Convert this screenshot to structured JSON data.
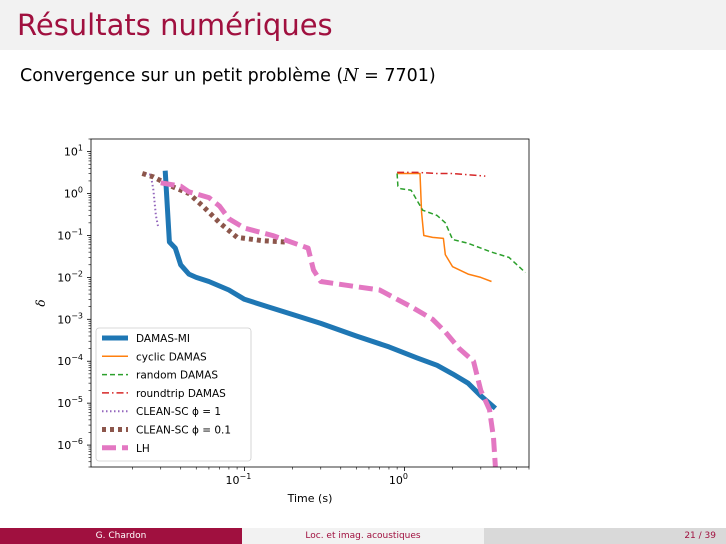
{
  "slide": {
    "title": "Résultats numériques",
    "subtitle_prefix": "Convergence sur un petit problème (",
    "subtitle_var": "N",
    "subtitle_eq": " = ",
    "subtitle_val": "7701",
    "subtitle_suffix": ")"
  },
  "footer": {
    "author": "G. Chardon",
    "short_title": "Loc. et imag. acoustiques",
    "page": "21 / 39"
  },
  "chart_data": {
    "type": "line",
    "xlabel": "Time (s)",
    "ylabel": "δ",
    "x_scale": "log",
    "y_scale": "log",
    "xlim": [
      0.011,
      6.0
    ],
    "ylim": [
      3e-07,
      20
    ],
    "x_ticks": [
      {
        "value": 0.1,
        "base": "10",
        "exp": "−1"
      },
      {
        "value": 1,
        "base": "10",
        "exp": "0"
      }
    ],
    "y_ticks": [
      {
        "value": 10,
        "base": "10",
        "exp": "1"
      },
      {
        "value": 1,
        "base": "10",
        "exp": "0"
      },
      {
        "value": 0.1,
        "base": "10",
        "exp": "−1"
      },
      {
        "value": 0.01,
        "base": "10",
        "exp": "−2"
      },
      {
        "value": 0.001,
        "base": "10",
        "exp": "−3"
      },
      {
        "value": 0.0001,
        "base": "10",
        "exp": "−4"
      },
      {
        "value": 1e-05,
        "base": "10",
        "exp": "−5"
      },
      {
        "value": 1e-06,
        "base": "10",
        "exp": "−6"
      }
    ],
    "grid": false,
    "legend_position": "lower-left",
    "series": [
      {
        "name": "DAMAS-MI",
        "color": "#1f77b4",
        "dash": "",
        "width": 5,
        "points": [
          [
            0.032,
            3.5
          ],
          [
            0.034,
            0.07
          ],
          [
            0.037,
            0.05
          ],
          [
            0.04,
            0.02
          ],
          [
            0.045,
            0.012
          ],
          [
            0.05,
            0.01
          ],
          [
            0.06,
            0.008
          ],
          [
            0.08,
            0.005
          ],
          [
            0.1,
            0.003
          ],
          [
            0.14,
            0.002
          ],
          [
            0.2,
            0.0013
          ],
          [
            0.3,
            0.0008
          ],
          [
            0.5,
            0.0004
          ],
          [
            0.8,
            0.00022
          ],
          [
            1.2,
            0.00012
          ],
          [
            1.6,
            8e-05
          ],
          [
            2.0,
            5e-05
          ],
          [
            2.5,
            3e-05
          ],
          [
            3.0,
            1.5e-05
          ],
          [
            3.7,
            7.5e-06
          ]
        ]
      },
      {
        "name": "cyclic DAMAS",
        "color": "#ff7f0e",
        "dash": "",
        "width": 1.5,
        "points": [
          [
            0.9,
            3.0
          ],
          [
            1.25,
            3.0
          ],
          [
            1.28,
            0.35
          ],
          [
            1.32,
            0.1
          ],
          [
            1.5,
            0.09
          ],
          [
            1.75,
            0.085
          ],
          [
            1.8,
            0.035
          ],
          [
            2.0,
            0.018
          ],
          [
            2.5,
            0.012
          ],
          [
            3.0,
            0.01
          ],
          [
            3.5,
            0.008
          ]
        ]
      },
      {
        "name": "random DAMAS",
        "color": "#2ca02c",
        "dash": "5,3",
        "width": 1.5,
        "points": [
          [
            0.9,
            3.0
          ],
          [
            0.91,
            1.5
          ],
          [
            0.95,
            1.3
          ],
          [
            1.1,
            1.2
          ],
          [
            1.3,
            0.4
          ],
          [
            1.6,
            0.3
          ],
          [
            1.8,
            0.2
          ],
          [
            2.0,
            0.08
          ],
          [
            2.5,
            0.065
          ],
          [
            3.0,
            0.05
          ],
          [
            3.5,
            0.04
          ],
          [
            4.5,
            0.03
          ],
          [
            5.7,
            0.013
          ]
        ]
      },
      {
        "name": "roundtrip DAMAS",
        "color": "#d62728",
        "dash": "7,3,1.5,3",
        "width": 1.5,
        "points": [
          [
            0.9,
            3.2
          ],
          [
            1.2,
            3.2
          ],
          [
            1.6,
            3.0
          ],
          [
            2.0,
            3.0
          ],
          [
            2.5,
            2.8
          ],
          [
            3.2,
            2.6
          ]
        ]
      },
      {
        "name": "CLEAN-SC ϕ = 1",
        "color": "#9467bd",
        "dash": "1.5,2.5",
        "width": 2,
        "points": [
          [
            0.024,
            3.0
          ],
          [
            0.026,
            2.8
          ],
          [
            0.027,
            1.2
          ],
          [
            0.028,
            0.3
          ],
          [
            0.029,
            0.15
          ]
        ]
      },
      {
        "name": "CLEAN-SC ϕ = 0.1",
        "color": "#8c564b",
        "dash": "4,4",
        "width": 5,
        "points": [
          [
            0.023,
            3.0
          ],
          [
            0.027,
            2.5
          ],
          [
            0.035,
            1.5
          ],
          [
            0.045,
            1.0
          ],
          [
            0.055,
            0.5
          ],
          [
            0.07,
            0.2
          ],
          [
            0.09,
            0.09
          ],
          [
            0.13,
            0.075
          ],
          [
            0.18,
            0.07
          ]
        ]
      },
      {
        "name": "LH",
        "color": "#e377c2",
        "dash": "14,6",
        "width": 5,
        "points": [
          [
            0.03,
            1.8
          ],
          [
            0.04,
            1.5
          ],
          [
            0.045,
            1.1
          ],
          [
            0.06,
            0.8
          ],
          [
            0.07,
            0.5
          ],
          [
            0.08,
            0.25
          ],
          [
            0.1,
            0.15
          ],
          [
            0.15,
            0.1
          ],
          [
            0.25,
            0.05
          ],
          [
            0.27,
            0.015
          ],
          [
            0.3,
            0.008
          ],
          [
            0.5,
            0.006
          ],
          [
            0.7,
            0.005
          ],
          [
            0.9,
            0.003
          ],
          [
            1.1,
            0.002
          ],
          [
            1.5,
            0.001
          ],
          [
            1.8,
            0.0005
          ],
          [
            2.2,
            0.0002
          ],
          [
            2.7,
            0.0001
          ],
          [
            3.0,
            2e-05
          ],
          [
            3.4,
            7e-06
          ],
          [
            3.6,
            1.5e-06
          ],
          [
            3.7,
            3e-07
          ]
        ]
      }
    ]
  }
}
